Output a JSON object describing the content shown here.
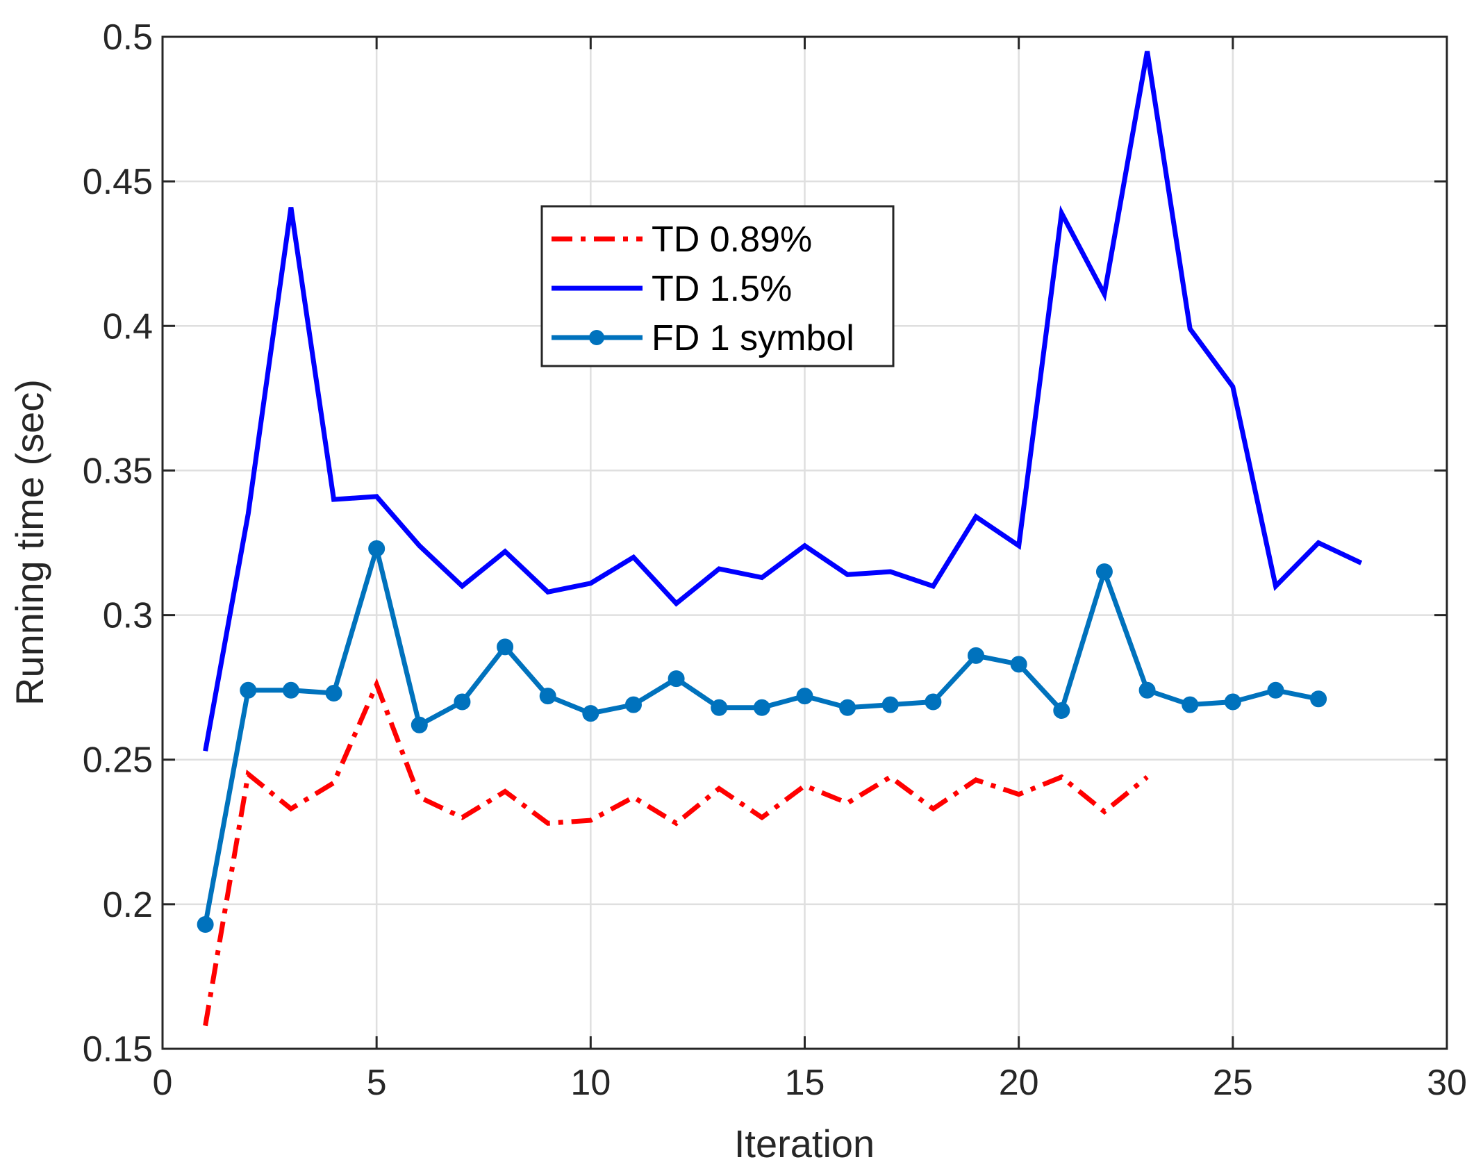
{
  "chart_data": {
    "type": "line",
    "xlabel": "Iteration",
    "ylabel": "Running time (sec)",
    "xlim": [
      0,
      30
    ],
    "ylim": [
      0.15,
      0.5
    ],
    "xticks": [
      0,
      5,
      10,
      15,
      20,
      25,
      30
    ],
    "yticks": [
      0.15,
      0.2,
      0.25,
      0.3,
      0.35,
      0.4,
      0.45,
      0.5
    ],
    "xtick_labels": [
      "0",
      "5",
      "10",
      "15",
      "20",
      "25",
      "30"
    ],
    "ytick_labels": [
      "0.15",
      "0.2",
      "0.25",
      "0.3",
      "0.35",
      "0.4",
      "0.45",
      "0.5"
    ],
    "grid": true,
    "legend_position": "top-center",
    "series": [
      {
        "name": "TD 0.89%",
        "color": "#ff0000",
        "style": "dash-dot",
        "marker": "none",
        "x": [
          1,
          2,
          3,
          4,
          5,
          6,
          7,
          8,
          9,
          10,
          11,
          12,
          13,
          14,
          15,
          16,
          17,
          18,
          19,
          20,
          21,
          22,
          23
        ],
        "y": [
          0.158,
          0.245,
          0.233,
          0.242,
          0.276,
          0.237,
          0.23,
          0.239,
          0.228,
          0.229,
          0.237,
          0.228,
          0.24,
          0.23,
          0.241,
          0.235,
          0.244,
          0.233,
          0.243,
          0.238,
          0.244,
          0.232,
          0.244
        ]
      },
      {
        "name": "TD 1.5%",
        "color": "#0000ff",
        "style": "solid",
        "marker": "none",
        "x": [
          1,
          2,
          3,
          4,
          5,
          6,
          7,
          8,
          9,
          10,
          11,
          12,
          13,
          14,
          15,
          16,
          17,
          18,
          19,
          20,
          21,
          22,
          23,
          24,
          25,
          26,
          27,
          28
        ],
        "y": [
          0.253,
          0.335,
          0.441,
          0.34,
          0.341,
          0.324,
          0.31,
          0.322,
          0.308,
          0.311,
          0.32,
          0.304,
          0.316,
          0.313,
          0.324,
          0.314,
          0.315,
          0.31,
          0.334,
          0.324,
          0.439,
          0.411,
          0.495,
          0.399,
          0.379,
          0.31,
          0.325,
          0.318
        ]
      },
      {
        "name": "FD 1 symbol",
        "color": "#0072bd",
        "style": "solid",
        "marker": "circle",
        "x": [
          1,
          2,
          3,
          4,
          5,
          6,
          7,
          8,
          9,
          10,
          11,
          12,
          13,
          14,
          15,
          16,
          17,
          18,
          19,
          20,
          21,
          22,
          23,
          24,
          25,
          26,
          27
        ],
        "y": [
          0.193,
          0.274,
          0.274,
          0.273,
          0.323,
          0.262,
          0.27,
          0.289,
          0.272,
          0.266,
          0.269,
          0.278,
          0.268,
          0.268,
          0.272,
          0.268,
          0.269,
          0.27,
          0.286,
          0.283,
          0.267,
          0.315,
          0.274,
          0.269,
          0.27,
          0.274,
          0.271
        ]
      }
    ]
  }
}
